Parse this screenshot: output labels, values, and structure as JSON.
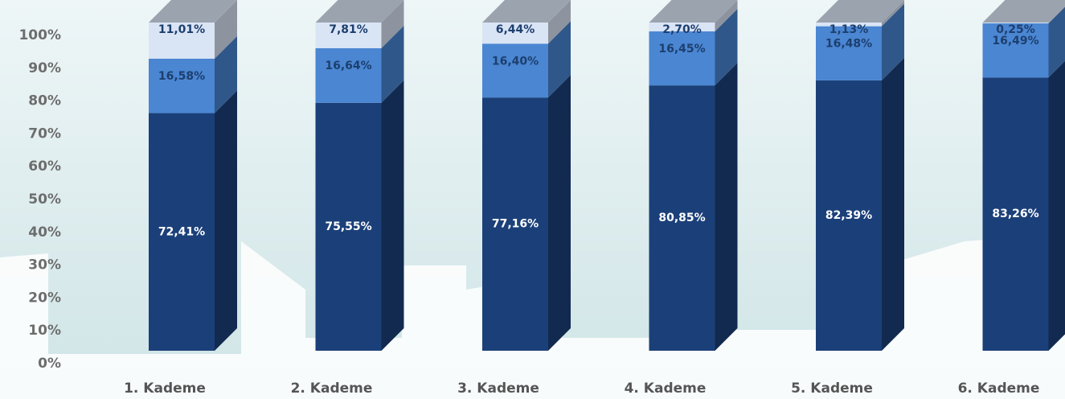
{
  "chart_data": {
    "type": "stacked_bar_3d",
    "categories": [
      "1. Kademe",
      "2. Kademe",
      "3. Kademe",
      "4. Kademe",
      "5. Kademe",
      "6. Kademe"
    ],
    "series": [
      {
        "color": "#1b4079",
        "values": [
          72.41,
          75.55,
          77.16,
          80.85,
          82.39,
          83.26
        ],
        "value_labels": [
          "72,41%",
          "75,55%",
          "77,16%",
          "80,85%",
          "82,39%",
          "83,26%"
        ]
      },
      {
        "color": "#4a86d2",
        "values": [
          16.58,
          16.64,
          16.4,
          16.45,
          16.48,
          16.49
        ],
        "value_labels": [
          "16,58%",
          "16,64%",
          "16,40%",
          "16,45%",
          "16,48%",
          "16,49%"
        ]
      },
      {
        "color": "#d9e4f5",
        "values": [
          11.01,
          7.81,
          6.44,
          2.7,
          1.13,
          0.25
        ],
        "value_labels": [
          "11,01%",
          "7,81%",
          "6,44%",
          "2,70%",
          "1,13%",
          "0,25%"
        ]
      }
    ],
    "ylim": [
      0,
      100
    ],
    "yticks": [
      {
        "value": 0,
        "label": "0%"
      },
      {
        "value": 10,
        "label": "10%"
      },
      {
        "value": 20,
        "label": "20%"
      },
      {
        "value": 30,
        "label": "30%"
      },
      {
        "value": 40,
        "label": "40%"
      },
      {
        "value": 50,
        "label": "50%"
      },
      {
        "value": 60,
        "label": "60%"
      },
      {
        "value": 70,
        "label": "70%"
      },
      {
        "value": 80,
        "label": "80%"
      },
      {
        "value": 90,
        "label": "90%"
      },
      {
        "value": 100,
        "label": "100%"
      }
    ]
  }
}
